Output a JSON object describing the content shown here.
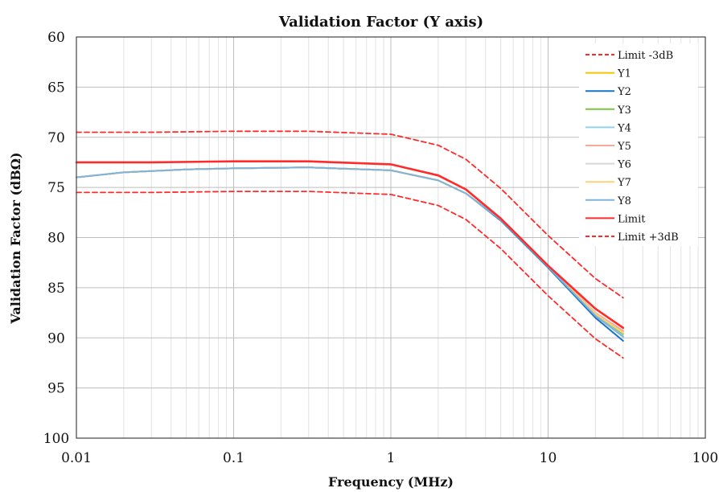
{
  "chart_data": {
    "type": "line",
    "title": "Validation Factor (Y axis)",
    "xlabel": "Frequency (MHz)",
    "ylabel": "Validation Factor (dBΩ)",
    "x_scale": "log",
    "xlim": [
      0.01,
      100
    ],
    "ylim": [
      100,
      60
    ],
    "y_inverted": true,
    "x_ticks": [
      "0.01",
      "0.1",
      "1",
      "10",
      "100"
    ],
    "y_ticks": [
      "60",
      "65",
      "70",
      "75",
      "80",
      "85",
      "90",
      "95",
      "100"
    ],
    "grid": true,
    "legend_position": "top-right",
    "series": [
      {
        "name": "Limit -3dB",
        "color": "#ff2a2a",
        "dash": true,
        "x": [
          0.01,
          0.03,
          0.1,
          0.3,
          1,
          2,
          3,
          5,
          10,
          20,
          30
        ],
        "y": [
          69.5,
          69.5,
          69.4,
          69.4,
          69.7,
          70.8,
          72.2,
          75.1,
          79.8,
          84.1,
          86.0
        ]
      },
      {
        "name": "Y1",
        "color": "#f5c400",
        "dash": false,
        "x": [
          0.01,
          0.02,
          0.05,
          0.1,
          0.3,
          1,
          2,
          3,
          5,
          10,
          20,
          30
        ],
        "y": [
          74.0,
          73.5,
          73.2,
          73.1,
          73.0,
          73.3,
          74.3,
          75.6,
          78.2,
          82.8,
          87.5,
          89.4
        ]
      },
      {
        "name": "Y2",
        "color": "#1a73c7",
        "dash": false,
        "x": [
          0.01,
          0.02,
          0.05,
          0.1,
          0.3,
          1,
          2,
          3,
          5,
          10,
          20,
          30
        ],
        "y": [
          74.0,
          73.5,
          73.2,
          73.1,
          73.0,
          73.3,
          74.3,
          75.6,
          78.3,
          83.0,
          88.0,
          90.3
        ]
      },
      {
        "name": "Y3",
        "color": "#7cc243",
        "dash": false,
        "x": [
          0.01,
          0.02,
          0.05,
          0.1,
          0.3,
          1,
          2,
          3,
          5,
          10,
          20,
          30
        ],
        "y": [
          74.0,
          73.5,
          73.2,
          73.1,
          73.0,
          73.3,
          74.3,
          75.6,
          78.2,
          82.9,
          87.7,
          89.6
        ]
      },
      {
        "name": "Y4",
        "color": "#8fd3ec",
        "dash": false,
        "x": [
          0.01,
          0.02,
          0.05,
          0.1,
          0.3,
          1,
          2,
          3,
          5,
          10,
          20,
          30
        ],
        "y": [
          74.0,
          73.5,
          73.2,
          73.1,
          73.0,
          73.3,
          74.3,
          75.6,
          78.2,
          82.9,
          87.8,
          89.8
        ]
      },
      {
        "name": "Y5",
        "color": "#f5a99a",
        "dash": false,
        "x": [
          0.01,
          0.02,
          0.05,
          0.1,
          0.3,
          1,
          2,
          3,
          5,
          10,
          20,
          30
        ],
        "y": [
          74.0,
          73.5,
          73.2,
          73.1,
          73.0,
          73.3,
          74.3,
          75.6,
          78.2,
          82.8,
          87.5,
          89.3
        ]
      },
      {
        "name": "Y6",
        "color": "#d6d6d6",
        "dash": false,
        "x": [
          0.01,
          0.02,
          0.05,
          0.1,
          0.3,
          1,
          2,
          3,
          5,
          10,
          20,
          30
        ],
        "y": [
          74.0,
          73.5,
          73.2,
          73.1,
          73.0,
          73.3,
          74.3,
          75.6,
          78.2,
          82.8,
          87.6,
          89.5
        ]
      },
      {
        "name": "Y7",
        "color": "#fbd27a",
        "dash": false,
        "x": [
          0.01,
          0.02,
          0.05,
          0.1,
          0.3,
          1,
          2,
          3,
          5,
          10,
          20,
          30
        ],
        "y": [
          74.0,
          73.5,
          73.2,
          73.1,
          73.0,
          73.3,
          74.3,
          75.6,
          78.2,
          82.8,
          87.6,
          89.5
        ]
      },
      {
        "name": "Y8",
        "color": "#7fb3d9",
        "dash": false,
        "x": [
          0.01,
          0.02,
          0.05,
          0.1,
          0.3,
          1,
          2,
          3,
          5,
          10,
          20,
          30
        ],
        "y": [
          74.0,
          73.5,
          73.2,
          73.1,
          73.0,
          73.3,
          74.3,
          75.6,
          78.2,
          82.9,
          87.8,
          89.9
        ]
      },
      {
        "name": "Limit",
        "color": "#ff2a2a",
        "dash": false,
        "x": [
          0.01,
          0.03,
          0.1,
          0.3,
          1,
          2,
          3,
          5,
          10,
          20,
          30
        ],
        "y": [
          72.5,
          72.5,
          72.4,
          72.4,
          72.7,
          73.8,
          75.2,
          78.1,
          82.8,
          87.1,
          89.0
        ]
      },
      {
        "name": "Limit +3dB",
        "color": "#ff2a2a",
        "dash": true,
        "x": [
          0.01,
          0.03,
          0.1,
          0.3,
          1,
          2,
          3,
          5,
          10,
          20,
          30
        ],
        "y": [
          75.5,
          75.5,
          75.4,
          75.4,
          75.7,
          76.8,
          78.2,
          81.1,
          85.8,
          90.1,
          92.0
        ]
      }
    ]
  }
}
